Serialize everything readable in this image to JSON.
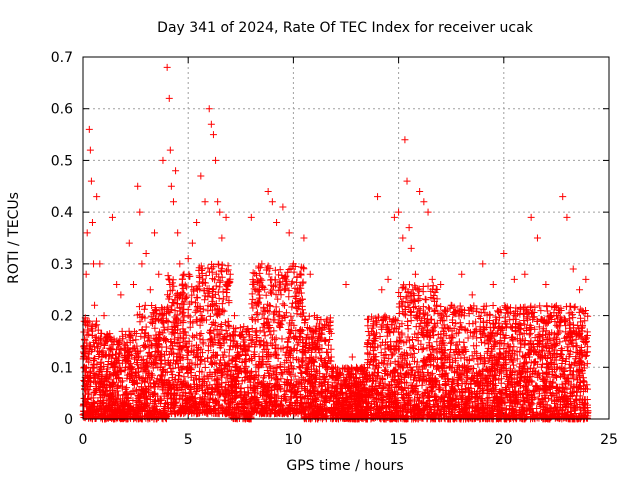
{
  "chart_data": {
    "type": "scatter",
    "title": "Day 341 of 2024, Rate Of TEC Index for receiver ucak",
    "xlabel": "GPS time / hours",
    "ylabel": "ROTI / TECUs",
    "xlim": [
      0,
      25
    ],
    "ylim": [
      0,
      0.7
    ],
    "xticks": [
      "0",
      "5",
      "10",
      "15",
      "20",
      "25"
    ],
    "yticks": [
      "0",
      "0.1",
      "0.2",
      "0.3",
      "0.4",
      "0.5",
      "0.6",
      "0.7"
    ],
    "grid": true,
    "marker": "+",
    "color": "#ff0000",
    "series": [
      {
        "x": [
          0.05,
          0.15,
          0.2,
          0.3,
          0.35,
          0.4,
          0.45,
          0.5,
          0.55,
          0.6,
          0.65,
          0.7,
          0.8,
          0.9,
          1.0,
          1.2,
          1.4,
          1.6,
          1.8,
          2.0,
          2.2,
          2.4,
          2.6,
          2.7,
          2.8,
          3.0,
          3.2,
          3.4,
          3.6,
          3.8,
          4.0,
          4.1,
          4.15,
          4.2,
          4.3,
          4.4,
          4.5,
          4.6,
          4.8,
          5.0,
          5.2,
          5.4,
          5.6,
          5.8,
          6.0,
          6.1,
          6.2,
          6.3,
          6.4,
          6.5,
          6.6,
          6.8,
          7.0,
          7.2,
          7.5,
          8.0,
          8.5,
          8.8,
          9.0,
          9.2,
          9.5,
          9.8,
          10.0,
          10.2,
          10.5,
          10.8,
          11.0,
          11.2,
          11.5,
          11.8,
          12.0,
          12.5,
          12.8,
          13.0,
          13.5,
          13.8,
          14.0,
          14.2,
          14.5,
          14.8,
          15.0,
          15.2,
          15.3,
          15.4,
          15.5,
          15.6,
          15.8,
          16.0,
          16.2,
          16.4,
          16.6,
          16.8,
          17.0,
          17.5,
          18.0,
          18.5,
          19.0,
          19.5,
          20.0,
          20.5,
          21.0,
          21.3,
          21.6,
          22.0,
          22.5,
          22.8,
          23.0,
          23.3,
          23.6,
          23.9
        ],
        "y": [
          0.12,
          0.28,
          0.36,
          0.56,
          0.52,
          0.46,
          0.38,
          0.3,
          0.22,
          0.18,
          0.43,
          0.14,
          0.3,
          0.12,
          0.2,
          0.16,
          0.39,
          0.26,
          0.24,
          0.12,
          0.34,
          0.26,
          0.45,
          0.4,
          0.3,
          0.32,
          0.25,
          0.36,
          0.28,
          0.5,
          0.68,
          0.62,
          0.52,
          0.45,
          0.42,
          0.48,
          0.36,
          0.3,
          0.28,
          0.31,
          0.34,
          0.38,
          0.47,
          0.42,
          0.6,
          0.57,
          0.55,
          0.5,
          0.42,
          0.4,
          0.35,
          0.39,
          0.28,
          0.2,
          0.16,
          0.39,
          0.3,
          0.44,
          0.42,
          0.38,
          0.41,
          0.36,
          0.3,
          0.25,
          0.35,
          0.28,
          0.2,
          0.16,
          0.15,
          0.12,
          0.1,
          0.26,
          0.12,
          0.1,
          0.14,
          0.18,
          0.43,
          0.25,
          0.27,
          0.39,
          0.4,
          0.35,
          0.54,
          0.46,
          0.37,
          0.33,
          0.28,
          0.44,
          0.42,
          0.4,
          0.27,
          0.22,
          0.26,
          0.22,
          0.28,
          0.24,
          0.3,
          0.26,
          0.32,
          0.27,
          0.28,
          0.39,
          0.35,
          0.26,
          0.2,
          0.43,
          0.39,
          0.29,
          0.25,
          0.27
        ]
      }
    ],
    "density_bands": [
      {
        "x0": 0.0,
        "x1": 0.8,
        "ymin": 0.0,
        "ymax": 0.2
      },
      {
        "x0": 0.8,
        "x1": 2.5,
        "ymin": 0.0,
        "ymax": 0.17
      },
      {
        "x0": 2.5,
        "x1": 4.0,
        "ymin": 0.0,
        "ymax": 0.22
      },
      {
        "x0": 4.0,
        "x1": 5.5,
        "ymin": 0.01,
        "ymax": 0.28
      },
      {
        "x0": 5.5,
        "x1": 7.0,
        "ymin": 0.01,
        "ymax": 0.3
      },
      {
        "x0": 7.0,
        "x1": 8.0,
        "ymin": 0.0,
        "ymax": 0.18
      },
      {
        "x0": 8.0,
        "x1": 10.5,
        "ymin": 0.01,
        "ymax": 0.3
      },
      {
        "x0": 10.5,
        "x1": 11.8,
        "ymin": 0.0,
        "ymax": 0.2
      },
      {
        "x0": 11.8,
        "x1": 13.5,
        "ymin": 0.0,
        "ymax": 0.1
      },
      {
        "x0": 13.5,
        "x1": 15.0,
        "ymin": 0.0,
        "ymax": 0.2
      },
      {
        "x0": 15.0,
        "x1": 17.0,
        "ymin": 0.0,
        "ymax": 0.26
      },
      {
        "x0": 17.0,
        "x1": 20.0,
        "ymin": 0.0,
        "ymax": 0.22
      },
      {
        "x0": 20.0,
        "x1": 22.0,
        "ymin": 0.0,
        "ymax": 0.22
      },
      {
        "x0": 22.0,
        "x1": 24.0,
        "ymin": 0.0,
        "ymax": 0.22
      }
    ]
  }
}
